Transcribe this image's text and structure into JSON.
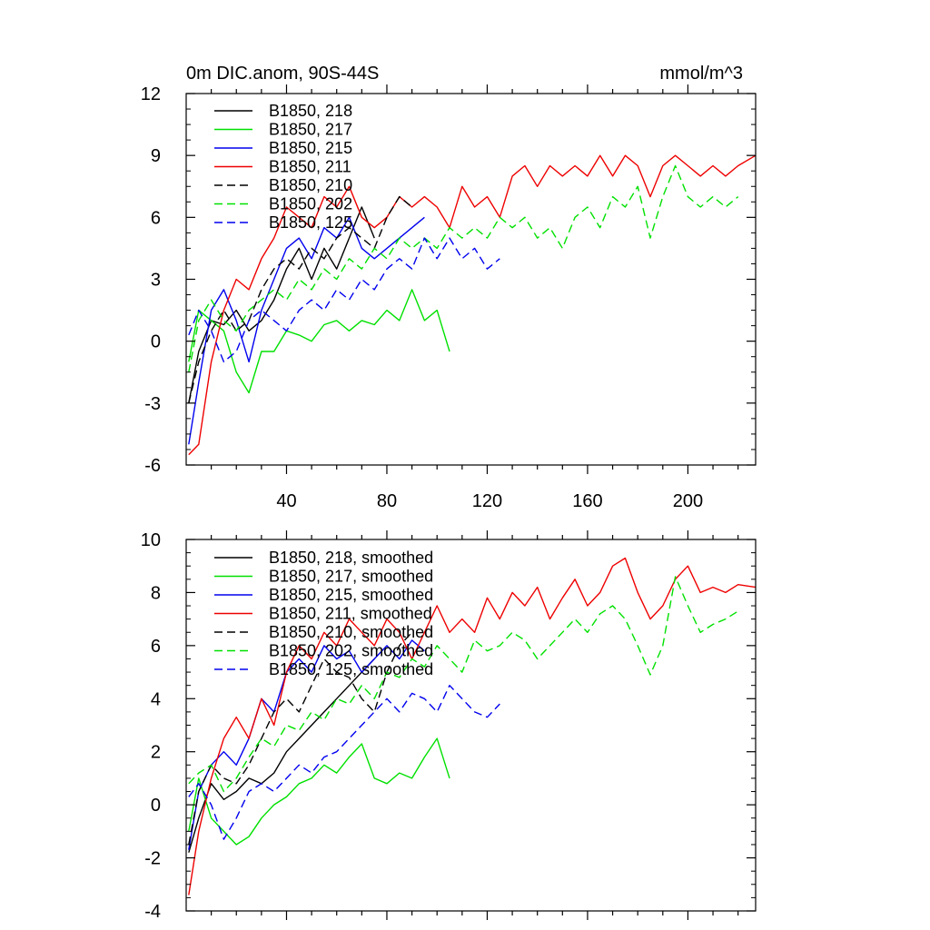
{
  "chart_data": [
    {
      "type": "line",
      "title": "0m DIC.anom, 90S-44S",
      "units": "mmol/m^3",
      "xlabel": "",
      "ylabel": "",
      "xlim": [
        0,
        227
      ],
      "ylim": [
        -6,
        12
      ],
      "xticks": [
        40,
        80,
        120,
        160,
        200
      ],
      "yticks": [
        -6,
        -3,
        0,
        3,
        6,
        9,
        12
      ],
      "legend_position": "top-left",
      "series": [
        {
          "name": "B1850, 218",
          "color": "#000000",
          "dash": "solid",
          "x": [
            1,
            5,
            10,
            15,
            20,
            25,
            30,
            35,
            40,
            45,
            50,
            55,
            60,
            65,
            70,
            75
          ],
          "values": [
            -3.0,
            -0.5,
            1.0,
            0.8,
            1.5,
            0.5,
            1.0,
            2.0,
            3.5,
            4.5,
            3.0,
            4.5,
            3.5,
            5.0,
            6.5,
            5.0
          ]
        },
        {
          "name": "B1850, 217",
          "color": "#00e000",
          "dash": "solid",
          "x": [
            1,
            5,
            10,
            15,
            20,
            25,
            30,
            35,
            40,
            45,
            50,
            55,
            60,
            65,
            70,
            75,
            80,
            85,
            90,
            95,
            100,
            105
          ],
          "values": [
            -1.0,
            1.5,
            1.0,
            0.5,
            -1.5,
            -2.5,
            -0.5,
            -0.5,
            0.5,
            0.3,
            0.0,
            0.8,
            1.0,
            0.5,
            1.0,
            0.8,
            1.5,
            1.0,
            2.5,
            1.0,
            1.5,
            -0.5
          ]
        },
        {
          "name": "B1850, 215",
          "color": "#0000ee",
          "dash": "solid",
          "x": [
            1,
            5,
            10,
            15,
            20,
            25,
            30,
            35,
            40,
            45,
            50,
            55,
            60,
            65,
            70,
            75,
            80,
            85,
            90,
            95
          ],
          "values": [
            -5.0,
            -2.0,
            1.5,
            2.5,
            1.0,
            -1.0,
            1.5,
            3.0,
            4.5,
            5.0,
            4.0,
            5.5,
            5.0,
            6.0,
            4.5,
            4.0,
            4.5,
            5.0,
            5.5,
            6.0
          ]
        },
        {
          "name": "B1850, 211",
          "color": "#ee0000",
          "dash": "solid",
          "x": [
            1,
            5,
            10,
            15,
            20,
            25,
            30,
            35,
            40,
            45,
            50,
            55,
            60,
            65,
            70,
            75,
            80,
            85,
            90,
            95,
            100,
            105,
            110,
            115,
            120,
            125,
            130,
            135,
            140,
            145,
            150,
            155,
            160,
            165,
            170,
            175,
            180,
            185,
            190,
            195,
            200,
            205,
            210,
            215,
            220,
            227
          ],
          "values": [
            -5.5,
            -5.0,
            -1.0,
            1.5,
            3.0,
            2.5,
            4.0,
            5.0,
            6.5,
            6.0,
            5.5,
            7.0,
            6.5,
            7.5,
            6.0,
            5.5,
            6.0,
            7.0,
            6.5,
            7.0,
            6.5,
            5.5,
            7.5,
            6.5,
            7.0,
            6.0,
            8.0,
            8.5,
            7.5,
            8.5,
            8.0,
            8.5,
            8.0,
            9.0,
            8.0,
            9.0,
            8.5,
            7.0,
            8.5,
            9.0,
            8.5,
            8.0,
            8.5,
            8.0,
            8.5,
            9.0
          ]
        },
        {
          "name": "B1850, 210",
          "color": "#000000",
          "dash": "dashed",
          "x": [
            1,
            5,
            10,
            15,
            20,
            25,
            30,
            35,
            40,
            45,
            50,
            55,
            60,
            65,
            70,
            75,
            80,
            85,
            90
          ],
          "values": [
            -3.0,
            -1.0,
            0.5,
            1.5,
            0.5,
            1.0,
            2.5,
            3.5,
            4.0,
            3.5,
            4.5,
            4.0,
            5.0,
            5.5,
            5.0,
            4.5,
            6.0,
            7.0,
            6.5
          ]
        },
        {
          "name": "B1850, 202",
          "color": "#00e000",
          "dash": "dashed",
          "x": [
            1,
            5,
            10,
            15,
            20,
            25,
            30,
            35,
            40,
            45,
            50,
            55,
            60,
            65,
            70,
            75,
            80,
            85,
            90,
            95,
            100,
            105,
            110,
            115,
            120,
            125,
            130,
            135,
            140,
            145,
            150,
            155,
            160,
            165,
            170,
            175,
            180,
            185,
            190,
            195,
            200,
            205,
            210,
            215,
            220
          ],
          "values": [
            -1.5,
            1.0,
            2.0,
            1.0,
            0.5,
            1.5,
            2.0,
            2.5,
            2.0,
            3.0,
            2.5,
            3.5,
            3.0,
            4.0,
            3.5,
            4.5,
            4.0,
            5.0,
            4.5,
            5.0,
            4.5,
            5.5,
            5.0,
            5.5,
            5.0,
            6.0,
            5.5,
            6.0,
            5.0,
            5.5,
            4.5,
            6.0,
            6.5,
            5.5,
            7.0,
            6.5,
            7.5,
            5.0,
            7.0,
            8.5,
            7.0,
            6.5,
            7.0,
            6.5,
            7.0
          ]
        },
        {
          "name": "B1850, 125",
          "color": "#0000ee",
          "dash": "dashed",
          "x": [
            1,
            5,
            10,
            15,
            20,
            25,
            30,
            35,
            40,
            45,
            50,
            55,
            60,
            65,
            70,
            75,
            80,
            85,
            90,
            95,
            100,
            105,
            110,
            115,
            120,
            125
          ],
          "values": [
            0.3,
            1.5,
            0.5,
            -1.0,
            -0.5,
            1.0,
            1.5,
            1.0,
            0.5,
            1.5,
            2.0,
            1.5,
            2.5,
            2.0,
            3.0,
            2.5,
            3.5,
            4.0,
            3.5,
            5.0,
            4.0,
            5.0,
            4.0,
            4.5,
            3.5,
            4.0
          ]
        }
      ]
    },
    {
      "type": "line",
      "title": "",
      "xlabel": "",
      "ylabel": "",
      "xlim": [
        0,
        227
      ],
      "ylim": [
        -4,
        10
      ],
      "yticks": [
        -4,
        -2,
        0,
        2,
        4,
        6,
        8,
        10
      ],
      "legend_position": "top-left",
      "series": [
        {
          "name": "B1850, 218, smoothed",
          "color": "#000000",
          "dash": "solid",
          "x": [
            1,
            5,
            10,
            15,
            20,
            25,
            30,
            35,
            40,
            45,
            50,
            55,
            60,
            65,
            70,
            75
          ],
          "values": [
            -1.8,
            -0.5,
            0.8,
            0.2,
            0.5,
            1.0,
            0.8,
            1.2,
            2.0,
            2.5,
            3.0,
            3.5,
            4.0,
            4.5,
            5.0,
            5.5
          ]
        },
        {
          "name": "B1850, 217, smoothed",
          "color": "#00e000",
          "dash": "solid",
          "x": [
            1,
            5,
            10,
            15,
            20,
            25,
            30,
            35,
            40,
            45,
            50,
            55,
            60,
            65,
            70,
            75,
            80,
            85,
            90,
            95,
            100,
            105
          ],
          "values": [
            -1.0,
            1.0,
            -0.5,
            -1.0,
            -1.5,
            -1.2,
            -0.5,
            0.0,
            0.3,
            0.8,
            1.0,
            1.5,
            1.2,
            1.8,
            2.3,
            1.0,
            0.8,
            1.2,
            1.0,
            1.8,
            2.5,
            1.0
          ]
        },
        {
          "name": "B1850, 215, smoothed",
          "color": "#0000ee",
          "dash": "solid",
          "x": [
            1,
            5,
            10,
            15,
            20,
            25,
            30,
            35,
            40,
            45,
            50,
            55,
            60,
            65,
            70,
            75,
            80,
            85,
            90,
            95
          ],
          "values": [
            -1.7,
            0.5,
            1.5,
            2.0,
            1.5,
            2.5,
            4.0,
            3.5,
            5.0,
            5.5,
            5.0,
            6.0,
            5.5,
            5.8,
            5.0,
            5.5,
            6.0,
            5.5,
            6.2,
            5.8
          ]
        },
        {
          "name": "B1850, 211, smoothed",
          "color": "#ee0000",
          "dash": "solid",
          "x": [
            1,
            5,
            10,
            15,
            20,
            25,
            30,
            35,
            40,
            45,
            50,
            55,
            60,
            65,
            70,
            75,
            80,
            85,
            90,
            95,
            100,
            105,
            110,
            115,
            120,
            125,
            130,
            135,
            140,
            145,
            150,
            155,
            160,
            165,
            170,
            175,
            180,
            185,
            190,
            195,
            200,
            205,
            210,
            215,
            220,
            227
          ],
          "values": [
            -3.4,
            -1.0,
            1.0,
            2.5,
            3.3,
            2.5,
            4.0,
            3.0,
            5.0,
            6.0,
            5.5,
            6.5,
            6.0,
            7.0,
            6.5,
            6.0,
            7.0,
            6.5,
            5.5,
            6.5,
            7.5,
            6.5,
            7.0,
            6.5,
            7.8,
            7.0,
            8.0,
            7.5,
            8.2,
            7.0,
            7.8,
            8.5,
            7.5,
            8.0,
            9.0,
            9.3,
            8.0,
            7.0,
            7.5,
            8.5,
            9.0,
            8.0,
            8.2,
            8.0,
            8.3,
            8.2
          ]
        },
        {
          "name": "B1850, 210, smoothed",
          "color": "#000000",
          "dash": "dashed",
          "x": [
            1,
            5,
            10,
            15,
            20,
            25,
            30,
            35,
            40,
            45,
            50,
            55,
            60,
            65,
            70,
            75,
            80,
            85,
            90
          ],
          "values": [
            -1.5,
            0.5,
            1.5,
            1.0,
            0.8,
            1.5,
            2.5,
            3.5,
            4.0,
            3.5,
            4.5,
            5.5,
            5.0,
            4.8,
            4.0,
            3.5,
            5.0,
            6.0,
            6.5
          ]
        },
        {
          "name": "B1850, 202, smoothed",
          "color": "#00e000",
          "dash": "dashed",
          "x": [
            1,
            5,
            10,
            15,
            20,
            25,
            30,
            35,
            40,
            45,
            50,
            55,
            60,
            65,
            70,
            75,
            80,
            85,
            90,
            95,
            100,
            105,
            110,
            115,
            120,
            125,
            130,
            135,
            140,
            145,
            150,
            155,
            160,
            165,
            170,
            175,
            180,
            185,
            190,
            195,
            200,
            205,
            210,
            215,
            220
          ],
          "values": [
            0.8,
            1.2,
            1.5,
            0.5,
            1.0,
            1.8,
            2.5,
            2.2,
            3.0,
            2.8,
            3.5,
            3.2,
            4.0,
            3.8,
            4.5,
            4.0,
            5.0,
            4.8,
            5.5,
            5.2,
            6.0,
            5.5,
            5.0,
            6.2,
            5.8,
            6.0,
            6.5,
            6.2,
            5.5,
            6.0,
            6.5,
            7.0,
            6.5,
            7.2,
            7.5,
            7.0,
            6.0,
            4.9,
            6.0,
            8.6,
            7.5,
            6.5,
            6.8,
            7.0,
            7.3
          ]
        },
        {
          "name": "B1850, 125, smoothed",
          "color": "#0000ee",
          "dash": "dashed",
          "x": [
            1,
            5,
            10,
            15,
            20,
            25,
            30,
            35,
            40,
            45,
            50,
            55,
            60,
            65,
            70,
            75,
            80,
            85,
            90,
            95,
            100,
            105,
            110,
            115,
            120,
            125
          ],
          "values": [
            0.3,
            0.8,
            0.0,
            -1.3,
            -0.5,
            0.5,
            0.8,
            0.5,
            1.0,
            1.5,
            1.2,
            1.8,
            2.0,
            2.5,
            3.0,
            3.5,
            4.0,
            3.5,
            4.2,
            4.0,
            3.5,
            4.5,
            4.0,
            3.5,
            3.3,
            3.8
          ]
        }
      ]
    }
  ]
}
